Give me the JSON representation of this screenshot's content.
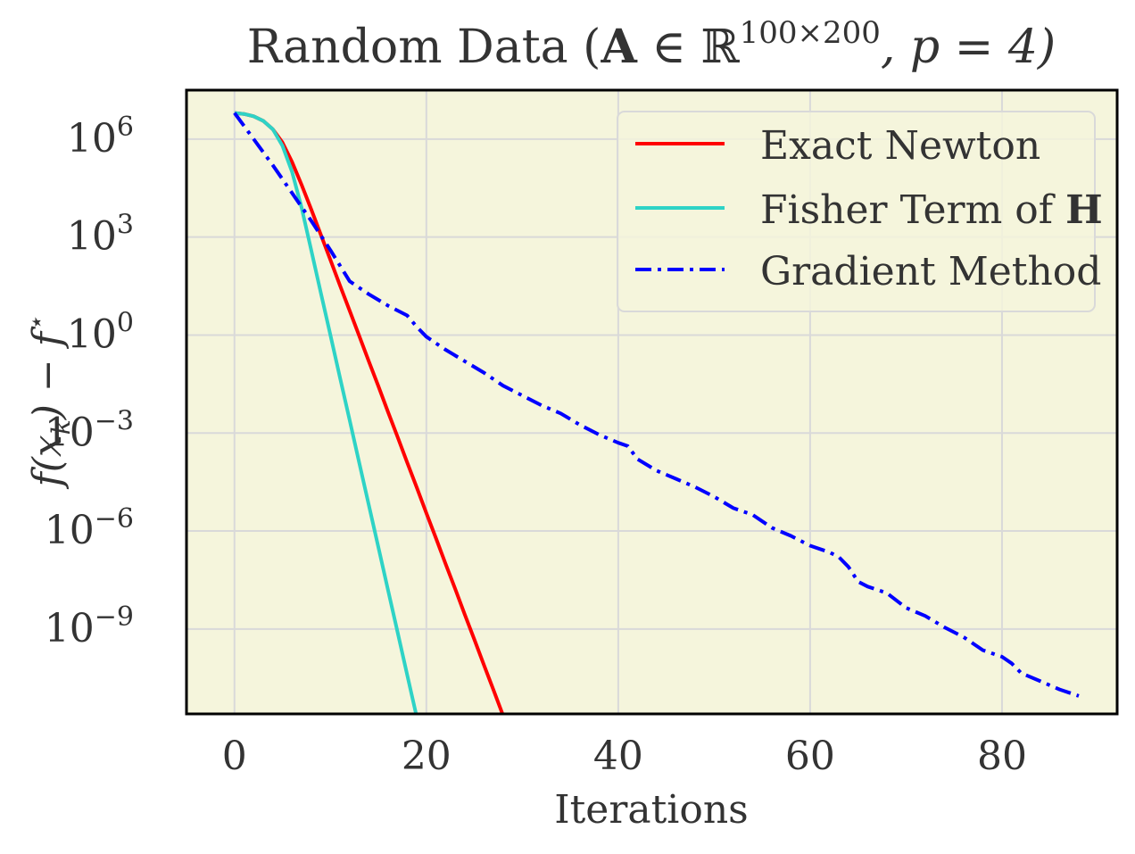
{
  "chart_data": {
    "type": "line",
    "title": "Random Data (A ∈ ℝ^{100×200}, p = 4)",
    "title_parts": {
      "prefix": "Random Data (",
      "matrix": "A",
      "member": " ∈ ℝ",
      "dims": "100×200",
      "suffix": ",  p = 4)"
    },
    "xlabel": "Iterations",
    "ylabel": "f(x_k) − f*",
    "ylabel_parts": {
      "f": "f",
      "open": "(x",
      "sub": "k",
      "close": ") − f",
      "star": "⋆"
    },
    "xscale": "linear",
    "yscale": "log",
    "xlim": [
      -5,
      92
    ],
    "ylim_log10": [
      -11.6,
      7.5
    ],
    "xticks": [
      0,
      20,
      40,
      60,
      80
    ],
    "xtick_labels": [
      "0",
      "20",
      "40",
      "60",
      "80"
    ],
    "yticks_exponent": [
      6,
      3,
      0,
      -3,
      -6,
      -9
    ],
    "ytick_base": "10",
    "ytick_exponent_labels": [
      "6",
      "3",
      "0",
      "−3",
      "−6",
      "−9"
    ],
    "grid": true,
    "legend_position": "top-right",
    "colors": {
      "background": "#f5f5dc",
      "grid": "#d9d9d9",
      "frame": "#000000",
      "text": "#333333"
    },
    "series": [
      {
        "name": "Exact Newton",
        "color": "#ff0000",
        "style": "solid",
        "x": [
          0,
          1,
          2,
          3,
          4,
          5,
          6,
          7,
          8,
          9,
          10,
          11,
          12,
          13,
          14,
          15,
          16,
          17,
          18,
          19,
          20,
          21,
          22,
          23,
          24,
          25,
          26,
          27,
          28,
          29,
          30
        ],
        "log10_y": [
          6.8,
          6.77,
          6.7,
          6.56,
          6.3,
          5.9,
          5.3,
          4.6,
          3.85,
          3.08,
          2.3,
          1.52,
          0.75,
          -0.02,
          -0.8,
          -1.57,
          -2.35,
          -3.12,
          -3.9,
          -4.67,
          -5.45,
          -6.22,
          -7.0,
          -7.77,
          -8.55,
          -9.32,
          -10.1,
          -10.87,
          -11.65,
          -12.42,
          -13.2
        ]
      },
      {
        "name": "Fisher Term of H",
        "name_parts": {
          "text": "Fisher Term of ",
          "bold": "H"
        },
        "color": "#2ed3c6",
        "style": "solid",
        "x": [
          0,
          1,
          2,
          3,
          4,
          5,
          6,
          7,
          8,
          9,
          10,
          11,
          12,
          13,
          14,
          15,
          16,
          17,
          18,
          19,
          20
        ],
        "log10_y": [
          6.8,
          6.77,
          6.7,
          6.56,
          6.3,
          5.8,
          5.0,
          3.9,
          2.6,
          1.3,
          0.0,
          -1.3,
          -2.6,
          -3.9,
          -5.2,
          -6.5,
          -7.8,
          -9.1,
          -10.4,
          -11.7,
          -13.0
        ]
      },
      {
        "name": "Gradient Method",
        "color": "#0000ff",
        "style": "dashdot",
        "x": [
          0,
          4,
          8,
          10,
          12,
          14,
          16,
          18,
          19,
          20,
          22,
          24,
          26,
          28,
          30,
          32,
          34,
          36,
          38,
          40,
          41,
          42,
          44,
          46,
          48,
          50,
          52,
          54,
          56,
          58,
          60,
          62,
          63,
          64,
          65,
          66,
          68,
          70,
          72,
          74,
          76,
          78,
          80,
          81,
          82,
          84,
          86,
          88
        ],
        "log10_y": [
          6.8,
          5.2,
          3.5,
          2.6,
          1.65,
          1.25,
          0.9,
          0.6,
          0.25,
          -0.05,
          -0.45,
          -0.8,
          -1.15,
          -1.55,
          -1.85,
          -2.15,
          -2.4,
          -2.75,
          -3.05,
          -3.3,
          -3.4,
          -3.8,
          -4.15,
          -4.4,
          -4.65,
          -4.95,
          -5.3,
          -5.5,
          -5.9,
          -6.15,
          -6.45,
          -6.65,
          -6.8,
          -7.1,
          -7.55,
          -7.7,
          -7.9,
          -8.35,
          -8.6,
          -8.95,
          -9.25,
          -9.65,
          -9.85,
          -10.05,
          -10.35,
          -10.6,
          -10.85,
          -11.05
        ]
      }
    ]
  }
}
